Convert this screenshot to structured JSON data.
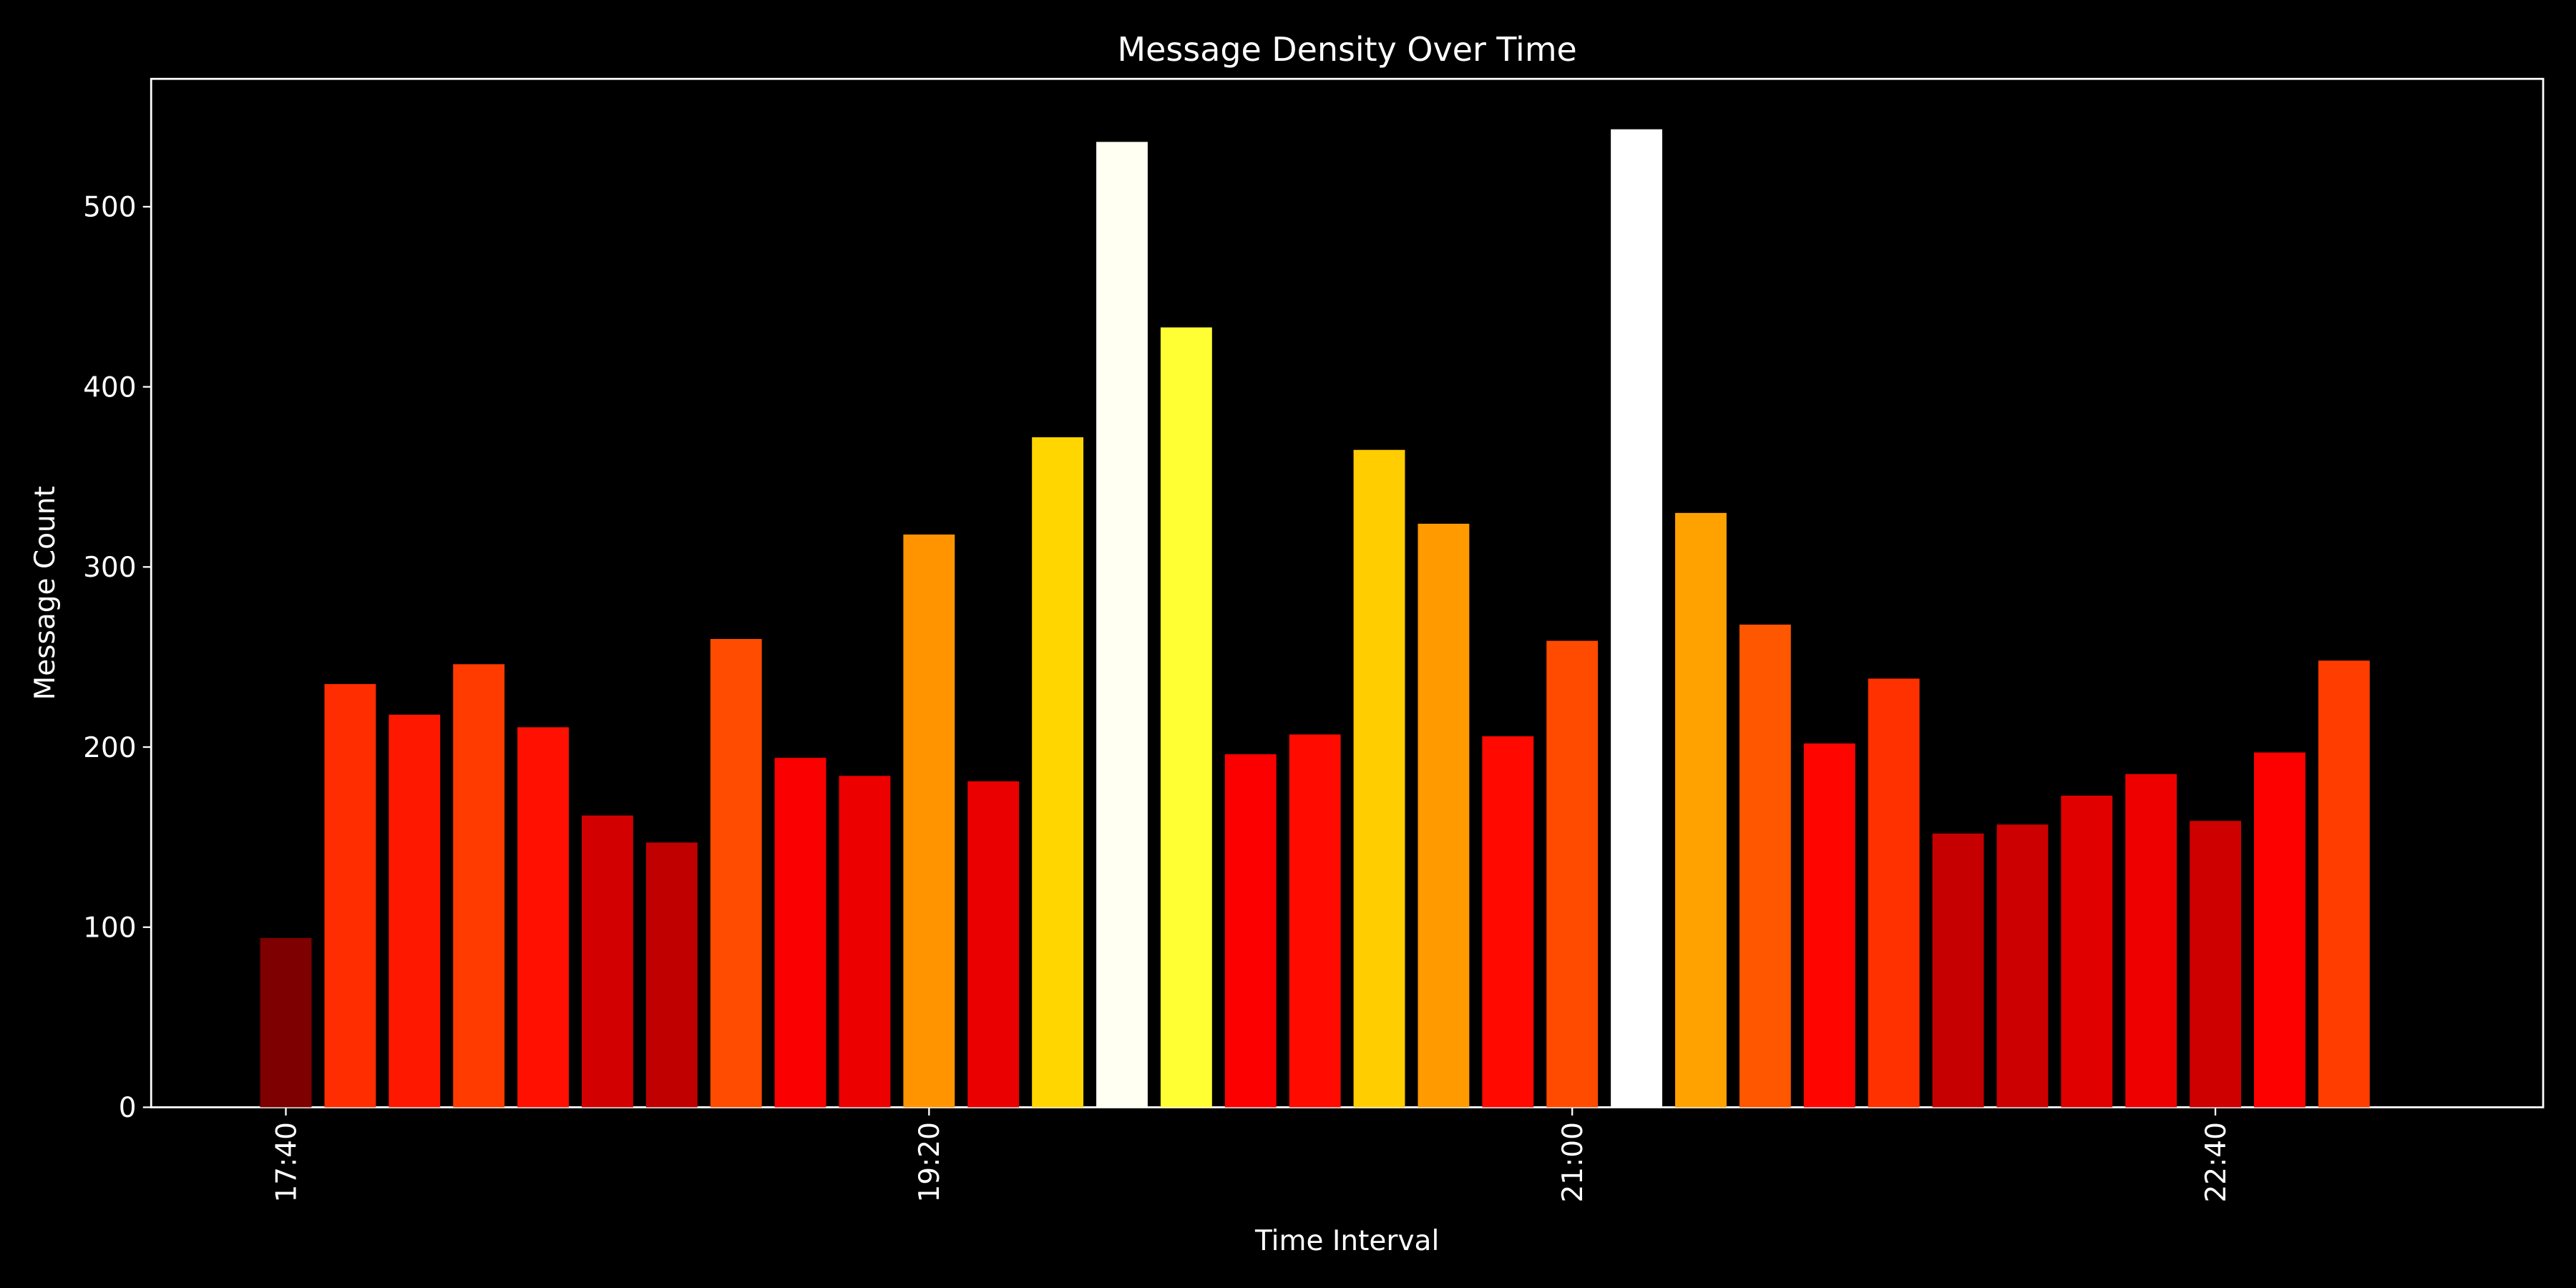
{
  "chart_data": {
    "type": "bar",
    "title": "Message Density Over Time",
    "x_label": "Time Interval",
    "y_label": "Message Count",
    "categories": [
      "17:40",
      null,
      null,
      null,
      null,
      null,
      null,
      null,
      null,
      null,
      "19:20",
      null,
      null,
      null,
      null,
      null,
      null,
      null,
      null,
      null,
      "21:00",
      null,
      null,
      null,
      null,
      null,
      null,
      null,
      null,
      null,
      "22:40",
      null,
      null
    ],
    "values": [
      94,
      235,
      218,
      246,
      211,
      162,
      147,
      260,
      194,
      184,
      318,
      181,
      372,
      536,
      433,
      196,
      207,
      365,
      324,
      206,
      259,
      543,
      330,
      268,
      202,
      238,
      152,
      157,
      173,
      185,
      159,
      197,
      248
    ],
    "colors": [
      "#7e0000",
      "#ff2d00",
      "#ff1800",
      "#ff3b00",
      "#ff1000",
      "#d20000",
      "#c00000",
      "#ff4c00",
      "#fa0000",
      "#ed0000",
      "#ff9400",
      "#ea0000",
      "#ffd600",
      "#fffff2",
      "#ffff34",
      "#fc0000",
      "#ff0b00",
      "#ffcd00",
      "#ff9b00",
      "#ff0900",
      "#ff4b00",
      "#ffffff",
      "#ffa200",
      "#ff5600",
      "#ff0500",
      "#ff3100",
      "#c60000",
      "#cc0000",
      "#e00000",
      "#ef0000",
      "#ce0000",
      "#fd0000",
      "#ff3d00"
    ],
    "ylim": [
      0,
      571
    ],
    "yticks": [
      0,
      100,
      200,
      300,
      400,
      500
    ],
    "grid": false
  }
}
